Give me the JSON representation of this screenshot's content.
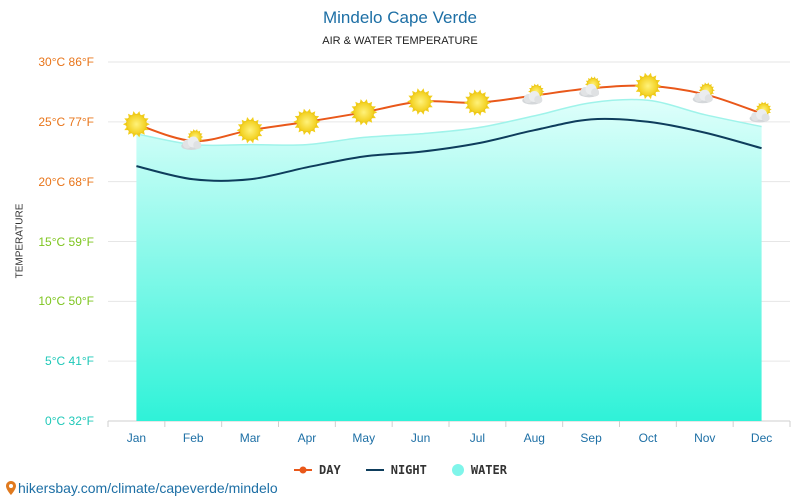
{
  "chart_data": {
    "type": "line",
    "title": "Mindelo Cape Verde",
    "subtitle": "AIR & WATER TEMPERATURE",
    "ylabel": "TEMPERATURE",
    "ylim": [
      0,
      30
    ],
    "categories": [
      "Jan",
      "Feb",
      "Mar",
      "Apr",
      "May",
      "Jun",
      "Jul",
      "Aug",
      "Sep",
      "Oct",
      "Nov",
      "Dec"
    ],
    "y_ticks": [
      {
        "value": 0,
        "label": "0°C 32°F",
        "color": "#1fc8b8"
      },
      {
        "value": 5,
        "label": "5°C 41°F",
        "color": "#1fc8b8"
      },
      {
        "value": 10,
        "label": "10°C 50°F",
        "color": "#7ec51f"
      },
      {
        "value": 15,
        "label": "15°C 59°F",
        "color": "#7ec51f"
      },
      {
        "value": 20,
        "label": "20°C 68°F",
        "color": "#e8751a"
      },
      {
        "value": 25,
        "label": "25°C 77°F",
        "color": "#e8751a"
      },
      {
        "value": 30,
        "label": "30°C 86°F",
        "color": "#e8751a"
      }
    ],
    "series": [
      {
        "name": "DAY",
        "type": "line",
        "color": "#e9581a",
        "values": [
          24.8,
          23.4,
          24.3,
          25.0,
          25.8,
          26.7,
          26.6,
          27.2,
          27.8,
          28.0,
          27.3,
          25.7
        ]
      },
      {
        "name": "NIGHT",
        "type": "line",
        "color": "#0e3d5c",
        "values": [
          21.3,
          20.2,
          20.2,
          21.2,
          22.1,
          22.5,
          23.2,
          24.3,
          25.2,
          25.0,
          24.1,
          22.8
        ]
      },
      {
        "name": "WATER",
        "type": "area",
        "color": "#7ff5ea",
        "values": [
          24.0,
          23.1,
          23.1,
          23.1,
          23.7,
          24.0,
          24.5,
          25.5,
          26.6,
          26.8,
          25.6,
          24.6
        ]
      }
    ],
    "weather_icons": [
      "sun",
      "sun-cloud",
      "sun",
      "sun",
      "sun",
      "sun",
      "sun",
      "sun-cloud",
      "sun-cloud",
      "sun",
      "sun-cloud",
      "sun-cloud"
    ],
    "grid": true,
    "legend_position": "bottom-center"
  },
  "source": {
    "icon": "location-pin-icon",
    "text": "hikersbay.com/climate/capeverde/mindelo"
  }
}
